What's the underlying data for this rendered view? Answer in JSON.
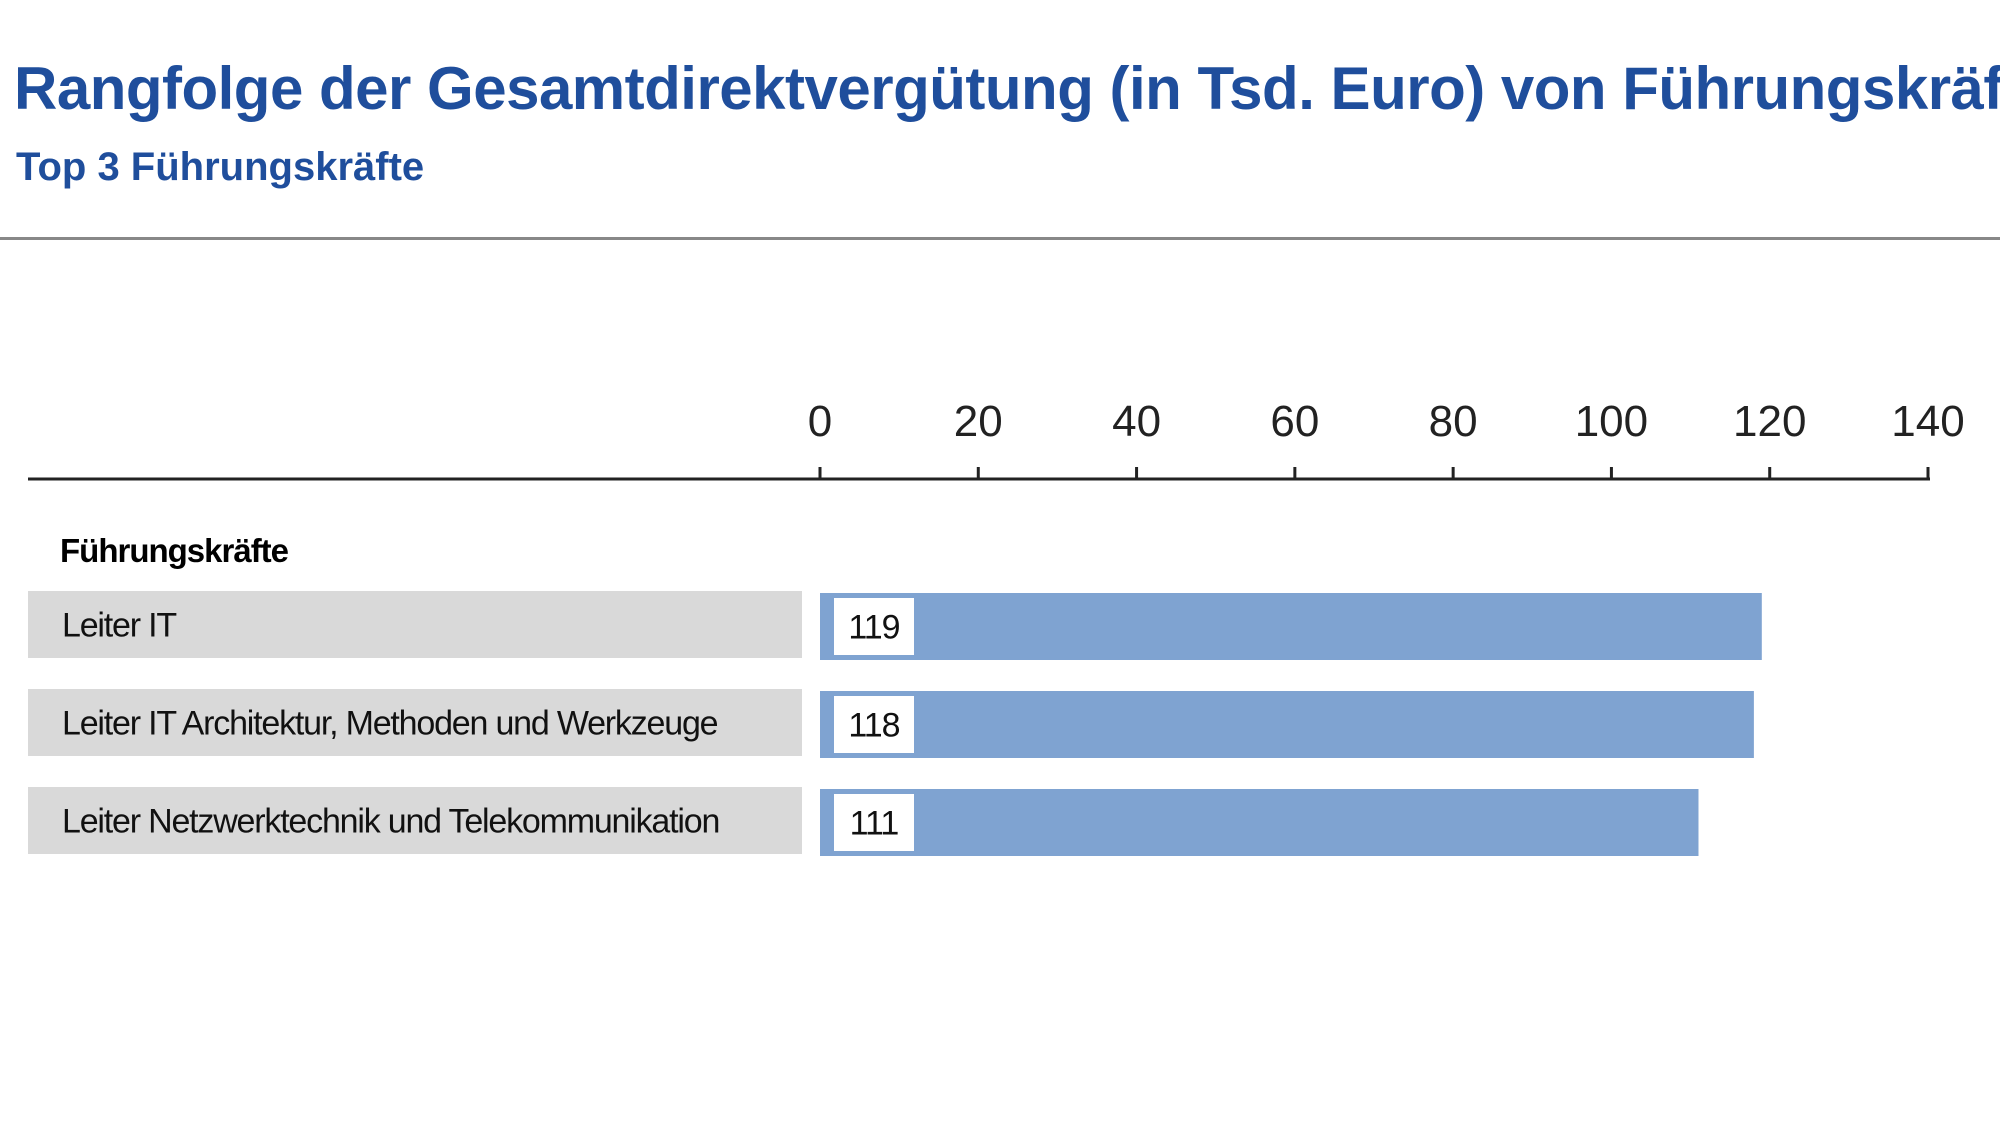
{
  "header": {
    "title": "Rangfolge der Gesamtdirektvergütung (in Tsd. Euro) von Führungskräften",
    "subtitle": "Top 3 Führungskräfte"
  },
  "chart_data": {
    "type": "bar",
    "orientation": "horizontal",
    "title": "Rangfolge der Gesamtdirektvergütung (in Tsd. Euro) von Führungskräften",
    "subtitle": "Top 3 Führungskräfte",
    "group_label": "Führungskräfte",
    "categories": [
      "Leiter IT",
      "Leiter IT Architektur, Methoden und Werkzeuge",
      "Leiter Netzwerktechnik und Telekommunikation"
    ],
    "values": [
      119,
      118,
      111
    ],
    "xlim": [
      0,
      140
    ],
    "xticks": [
      0,
      20,
      40,
      60,
      80,
      100,
      120,
      140
    ],
    "axis_position": "top",
    "grid": false,
    "colors": {
      "bar": "#7fa3d1",
      "label_background": "#d9d9d9",
      "value_box": "#ffffff",
      "axis": "#222222"
    }
  }
}
